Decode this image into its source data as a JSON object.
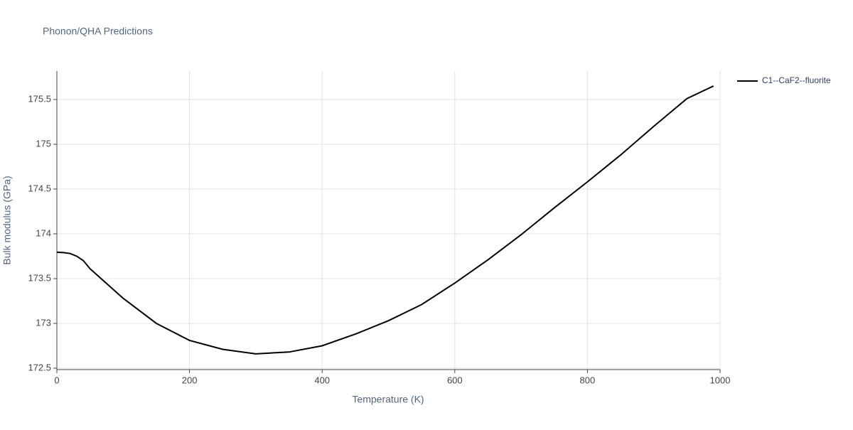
{
  "chart_data": {
    "type": "line",
    "title": "Phonon/QHA Predictions",
    "x_label": "Temperature (K)",
    "y_label": "Bulk modulus (GPa)",
    "x": [
      0,
      10,
      20,
      30,
      40,
      50,
      100,
      150,
      200,
      250,
      300,
      350,
      400,
      450,
      500,
      550,
      600,
      650,
      700,
      750,
      800,
      850,
      900,
      950,
      990
    ],
    "series": [
      {
        "name": "C1--CaF2--fluorite",
        "color": "#000000",
        "values": [
          173.794,
          173.79,
          173.78,
          173.75,
          173.7,
          173.61,
          173.28,
          173.0,
          172.81,
          172.71,
          172.66,
          172.68,
          172.75,
          172.88,
          173.03,
          173.21,
          173.45,
          173.71,
          173.99,
          174.29,
          174.58,
          174.88,
          175.2,
          175.51,
          175.65
        ]
      }
    ],
    "xlim": [
      0,
      1000
    ],
    "xticks": [
      0,
      200,
      400,
      600,
      800,
      1000
    ],
    "ylim": [
      172.484,
      175.817
    ],
    "yticks": [
      172.5,
      173,
      173.5,
      174,
      174.5,
      175,
      175.5
    ],
    "grid": true,
    "legend": "right"
  }
}
